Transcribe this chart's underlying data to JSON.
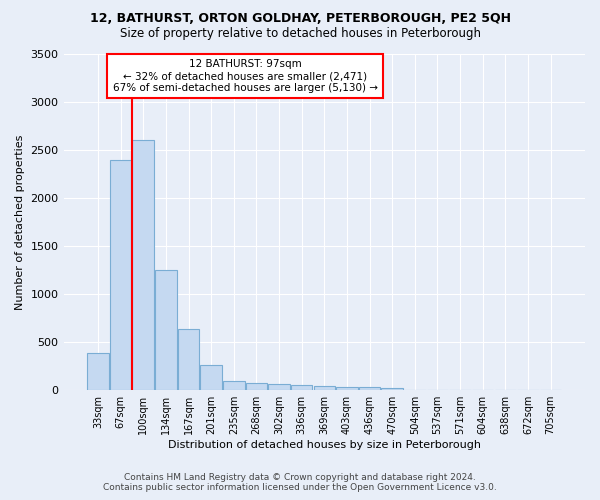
{
  "title": "12, BATHURST, ORTON GOLDHAY, PETERBOROUGH, PE2 5QH",
  "subtitle": "Size of property relative to detached houses in Peterborough",
  "xlabel": "Distribution of detached houses by size in Peterborough",
  "ylabel": "Number of detached properties",
  "footer_line1": "Contains HM Land Registry data © Crown copyright and database right 2024.",
  "footer_line2": "Contains public sector information licensed under the Open Government Licence v3.0.",
  "bar_color": "#c5d9f1",
  "bar_edge_color": "#7aadd4",
  "annotation_line1": "12 BATHURST: 97sqm",
  "annotation_line2": "← 32% of detached houses are smaller (2,471)",
  "annotation_line3": "67% of semi-detached houses are larger (5,130) →",
  "red_line_bin_index": 2,
  "categories": [
    "33sqm",
    "67sqm",
    "100sqm",
    "134sqm",
    "167sqm",
    "201sqm",
    "235sqm",
    "268sqm",
    "302sqm",
    "336sqm",
    "369sqm",
    "403sqm",
    "436sqm",
    "470sqm",
    "504sqm",
    "537sqm",
    "571sqm",
    "604sqm",
    "638sqm",
    "672sqm",
    "705sqm"
  ],
  "values": [
    390,
    2400,
    2600,
    1250,
    640,
    260,
    100,
    75,
    60,
    50,
    40,
    35,
    30,
    20,
    0,
    0,
    0,
    0,
    0,
    0,
    0
  ],
  "ylim": [
    0,
    3500
  ],
  "yticks": [
    0,
    500,
    1000,
    1500,
    2000,
    2500,
    3000,
    3500
  ],
  "background_color": "#e8eef8",
  "grid_color": "#ffffff",
  "title_fontsize": 9,
  "subtitle_fontsize": 8.5
}
